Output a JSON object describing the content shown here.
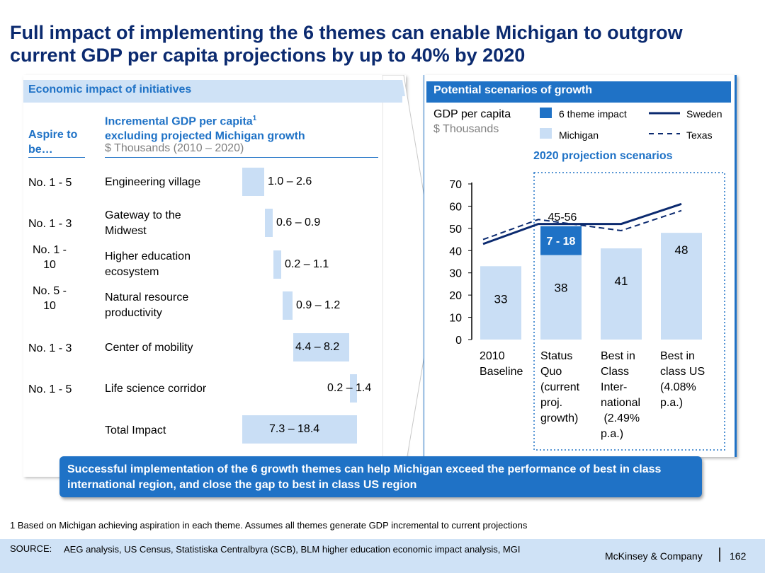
{
  "title": "Full impact of implementing the 6 themes can enable Michigan to outgrow current GDP per capita projections by up to 40% by 2020",
  "left_panel": {
    "header": "Economic impact of initiatives",
    "aspire_header": "Aspire to be…",
    "gdp_header": "Incremental GDP per capita",
    "gdp_header_sup": "1",
    "gdp_header_line2": "excluding projected Michigan growth",
    "gdp_subheader": "$ Thousands (2010 – 2020)",
    "rows": [
      {
        "aspire": "No. 1 - 5",
        "label": "Engineering village",
        "range": "1.0 – 2.6"
      },
      {
        "aspire": "No. 1 - 3",
        "label": "Gateway to the Midwest",
        "range": "0.6 – 0.9"
      },
      {
        "aspire": "No. 1 - 10",
        "label": "Higher education ecosystem",
        "range": "0.2 – 1.1"
      },
      {
        "aspire": "No. 5 - 10",
        "label": "Natural resource productivity",
        "range": "0.9 – 1.2"
      },
      {
        "aspire": "No. 1 - 3",
        "label": "Center of mobility",
        "range": "4.4 – 8.2"
      },
      {
        "aspire": "No. 1 - 5",
        "label": "Life science corridor",
        "range": "0.2 – 1.4"
      }
    ],
    "total": {
      "label": "Total Impact",
      "range": "7.3 – 18.4"
    }
  },
  "right_panel": {
    "header": "Potential scenarios of growth",
    "metric": "GDP per capita",
    "units": "$ Thousands",
    "legend": {
      "theme_impact": "6 theme impact",
      "michigan": "Michigan",
      "sweden": "Sweden",
      "texas": "Texas"
    },
    "projection_title": "2020 projection scenarios",
    "impact_label": "7 - 18",
    "range_label": "45-56"
  },
  "chart_data": [
    {
      "type": "bar",
      "title": "Incremental GDP per capita excluding projected Michigan growth",
      "subtitle": "$ Thousands (2010 – 2020)",
      "orientation": "waterfall-horizontal",
      "categories": [
        "Engineering village",
        "Gateway to the Midwest",
        "Higher education ecosystem",
        "Natural resource productivity",
        "Center of mobility",
        "Life science corridor",
        "Total Impact"
      ],
      "low": [
        1.0,
        0.6,
        0.2,
        0.9,
        4.4,
        0.2,
        7.3
      ],
      "high": [
        2.6,
        0.9,
        1.1,
        1.2,
        8.2,
        1.4,
        18.4
      ],
      "xlim": [
        0,
        18.4
      ]
    },
    {
      "type": "bar",
      "title": "Potential scenarios of growth",
      "ylabel": "GDP per capita, $ Thousands",
      "categories": [
        "2010 Baseline",
        "Status Quo (current proj. growth)",
        "Best in Class Inter-national (2.49% p.a.)",
        "Best in class US (4.08% p.a.)"
      ],
      "category_lines": [
        [
          "2010",
          "Baseline"
        ],
        [
          "Status",
          "Quo",
          "(current",
          "proj.",
          "growth)"
        ],
        [
          "Best in",
          "Class",
          "Inter-",
          "national",
          " (2.49%",
          "p.a.)"
        ],
        [
          "Best in",
          "class US",
          "(4.08%",
          "p.a.)"
        ]
      ],
      "series": [
        {
          "name": "Michigan",
          "values": [
            33,
            38,
            41,
            48
          ],
          "labels": [
            "33",
            "38",
            "41",
            "48"
          ],
          "color": "#c9def5"
        },
        {
          "name": "6 theme impact",
          "values": [
            0,
            13,
            0,
            0
          ],
          "color": "#1f72c6"
        },
        {
          "name": "Sweden",
          "type": "line",
          "values": [
            43,
            52,
            52,
            61
          ],
          "color": "#0b2a6f"
        },
        {
          "name": "Texas",
          "type": "line",
          "style": "dashed",
          "values": [
            45,
            54,
            49,
            58
          ],
          "color": "#0b2a6f"
        }
      ],
      "yticks": [
        0,
        10,
        20,
        30,
        40,
        50,
        60,
        70
      ],
      "ylim": [
        0,
        70
      ]
    }
  ],
  "callout": "Successful implementation of the 6 growth themes can help Michigan exceed the performance of best in class international region, and close the gap to best in class US region",
  "footnote": "1 Based on Michigan achieving aspiration in each theme. Assumes all themes generate GDP incremental to current projections",
  "source_label": "SOURCE:",
  "source_text": "AEG analysis, US Census, Statistiska Centralbyra (SCB), BLM higher education economic impact analysis, MGI",
  "brand": "McKinsey & Company",
  "page_number": "162",
  "colors": {
    "navy": "#0b2a6f",
    "blue": "#1f72c6",
    "light_blue": "#c9def5",
    "header_blue": "#cfe2f6"
  }
}
